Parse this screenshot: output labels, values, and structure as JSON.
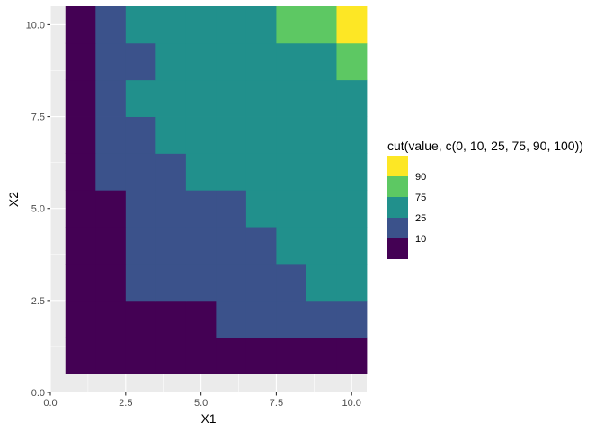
{
  "chart_data": {
    "type": "heatmap",
    "xlabel": "X1",
    "ylabel": "X2",
    "x_ticks": [
      "0.0",
      "2.5",
      "5.0",
      "7.5",
      "10.0"
    ],
    "y_ticks": [
      "0.0",
      "2.5",
      "5.0",
      "7.5",
      "10.0"
    ],
    "x_tick_values": [
      0,
      2.5,
      5,
      7.5,
      10
    ],
    "y_tick_values": [
      0,
      2.5,
      5,
      7.5,
      10
    ],
    "xlim": [
      0,
      10.5
    ],
    "ylim": [
      0,
      10.5
    ],
    "x": [
      1,
      2,
      3,
      4,
      5,
      6,
      7,
      8,
      9,
      10
    ],
    "y": [
      1,
      2,
      3,
      4,
      5,
      6,
      7,
      8,
      9,
      10
    ],
    "legend_title": "cut(value, c(0, 10, 25, 75, 90, 100))",
    "legend_position": "right",
    "categories": [
      {
        "label": "90",
        "color": "#FDE725"
      },
      {
        "label": "75",
        "color": "#5DC863"
      },
      {
        "label": "25",
        "color": "#21908C"
      },
      {
        "label": "10",
        "color": "#3B528B"
      },
      {
        "label": "",
        "color": "#440154"
      }
    ],
    "cells": [
      [
        4,
        4,
        4,
        4,
        4,
        4,
        4,
        4,
        4,
        4
      ],
      [
        4,
        4,
        4,
        4,
        4,
        3,
        3,
        3,
        3,
        3
      ],
      [
        4,
        4,
        3,
        3,
        3,
        3,
        3,
        3,
        2,
        2
      ],
      [
        4,
        4,
        3,
        3,
        3,
        3,
        3,
        2,
        2,
        2
      ],
      [
        4,
        4,
        3,
        3,
        3,
        3,
        2,
        2,
        2,
        2
      ],
      [
        4,
        3,
        3,
        3,
        2,
        2,
        2,
        2,
        2,
        2
      ],
      [
        4,
        3,
        3,
        2,
        2,
        2,
        2,
        2,
        2,
        2
      ],
      [
        4,
        3,
        2,
        2,
        2,
        2,
        2,
        2,
        2,
        2
      ],
      [
        4,
        3,
        3,
        2,
        2,
        2,
        2,
        2,
        2,
        1
      ],
      [
        4,
        3,
        2,
        2,
        2,
        2,
        2,
        1,
        1,
        0
      ]
    ],
    "panel_background": "#EBEBEB",
    "grid_color": "#FFFFFF",
    "grid": true
  }
}
